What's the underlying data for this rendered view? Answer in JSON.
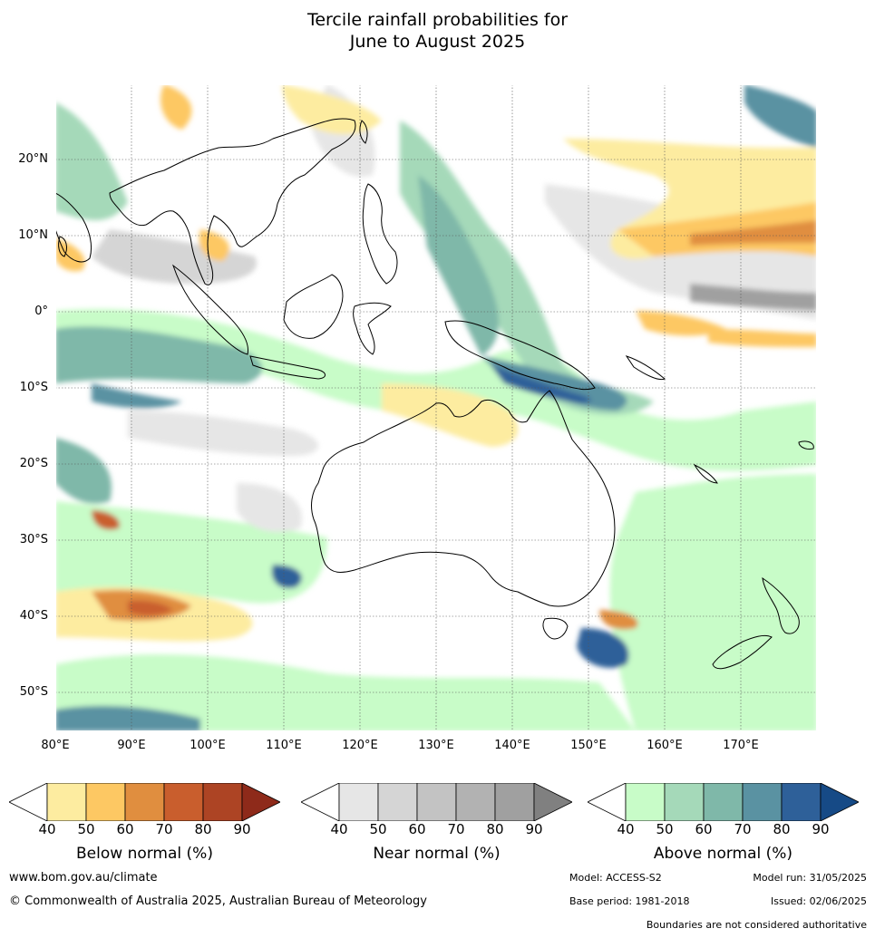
{
  "title_line1": "Tercile rainfall probabilities for",
  "title_line2": "June to August 2025",
  "map": {
    "lat_labels": [
      "20°N",
      "10°N",
      "0°",
      "10°S",
      "20°S",
      "30°S",
      "40°S",
      "50°S"
    ],
    "lon_labels": [
      "80°E",
      "90°E",
      "100°E",
      "110°E",
      "120°E",
      "130°E",
      "140°E",
      "150°E",
      "160°E",
      "170°E"
    ]
  },
  "colorbars": [
    {
      "title": "Below normal (%)",
      "ticks": [
        "40",
        "50",
        "60",
        "70",
        "80",
        "90"
      ],
      "colors": [
        "#ffffff",
        "#fdeca0",
        "#fdc863",
        "#e08e3f",
        "#c95e2d",
        "#ad4424",
        "#8e2a1a"
      ]
    },
    {
      "title": "Near normal (%)",
      "ticks": [
        "40",
        "50",
        "60",
        "70",
        "80",
        "90"
      ],
      "colors": [
        "#ffffff",
        "#e6e6e6",
        "#d5d5d5",
        "#c3c3c3",
        "#b2b2b2",
        "#a0a0a0",
        "#808080"
      ]
    },
    {
      "title": "Above normal (%)",
      "ticks": [
        "40",
        "50",
        "60",
        "70",
        "80",
        "90"
      ],
      "colors": [
        "#ffffff",
        "#c8fcc8",
        "#a5d9b9",
        "#7fb8a9",
        "#5a92a2",
        "#2e6099",
        "#164a86"
      ]
    }
  ],
  "footer": {
    "website": "www.bom.gov.au/climate",
    "copyright": "© Commonwealth of Australia 2025, Australian Bureau of Meteorology",
    "model": "Model: ACCESS-S2",
    "model_run": "Model run: 31/05/2025",
    "base_period": "Base period: 1981-2018",
    "issued": "Issued: 02/06/2025",
    "boundaries": "Boundaries are not considered authoritative"
  }
}
